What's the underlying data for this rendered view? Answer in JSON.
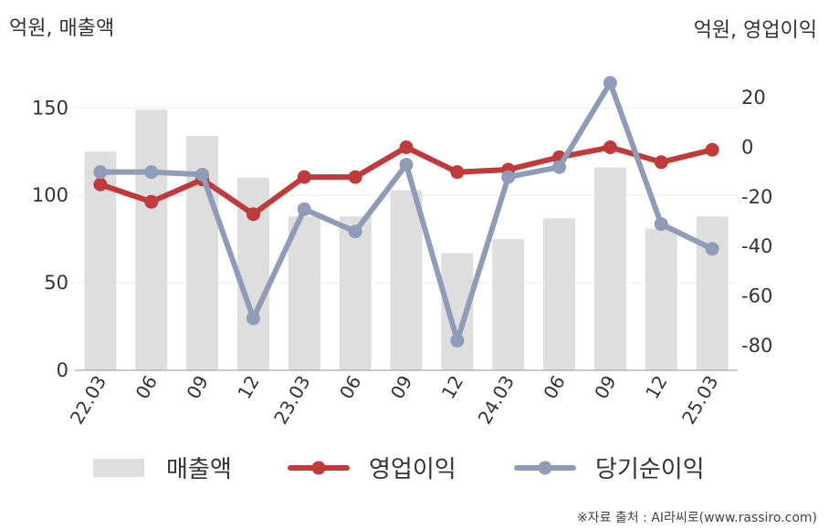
{
  "chart_data": {
    "type": "bar",
    "title": "",
    "left_axis_label": "억원, 매출액",
    "right_axis_label": "억원, 영업이익",
    "categories": [
      "22.03",
      "06",
      "09",
      "12",
      "23.03",
      "06",
      "09",
      "12",
      "24.03",
      "06",
      "09",
      "12",
      "25.03"
    ],
    "left_ylim": [
      0,
      170
    ],
    "left_ticks": [
      "0",
      "50",
      "100",
      "150"
    ],
    "right_ylim": [
      -90,
      30
    ],
    "right_ticks": [
      "-80",
      "-60",
      "-40",
      "-20",
      "0",
      "20"
    ],
    "series": [
      {
        "name": "매출액",
        "type": "bar",
        "axis": "left",
        "color": "#dedede",
        "values": [
          125,
          149,
          134,
          110,
          88,
          88,
          103,
          67,
          75,
          87,
          116,
          81,
          88
        ]
      },
      {
        "name": "영업이익",
        "type": "line",
        "axis": "right",
        "color": "#c0393b",
        "values": [
          -15,
          -22,
          -13,
          -27,
          -12,
          -12,
          0,
          -10,
          -9,
          -4,
          0,
          -6,
          -1
        ]
      },
      {
        "name": "당기순이익",
        "type": "line",
        "axis": "right",
        "color": "#8f9cb8",
        "values": [
          -10,
          -10,
          -11,
          -69,
          -25,
          -34,
          -7,
          -78,
          -12,
          -8,
          26,
          -31,
          -41
        ]
      }
    ],
    "grid": true,
    "legend_position": "bottom"
  },
  "source": "※자료 출처 : AI라씨로(www.rassiro.com)"
}
